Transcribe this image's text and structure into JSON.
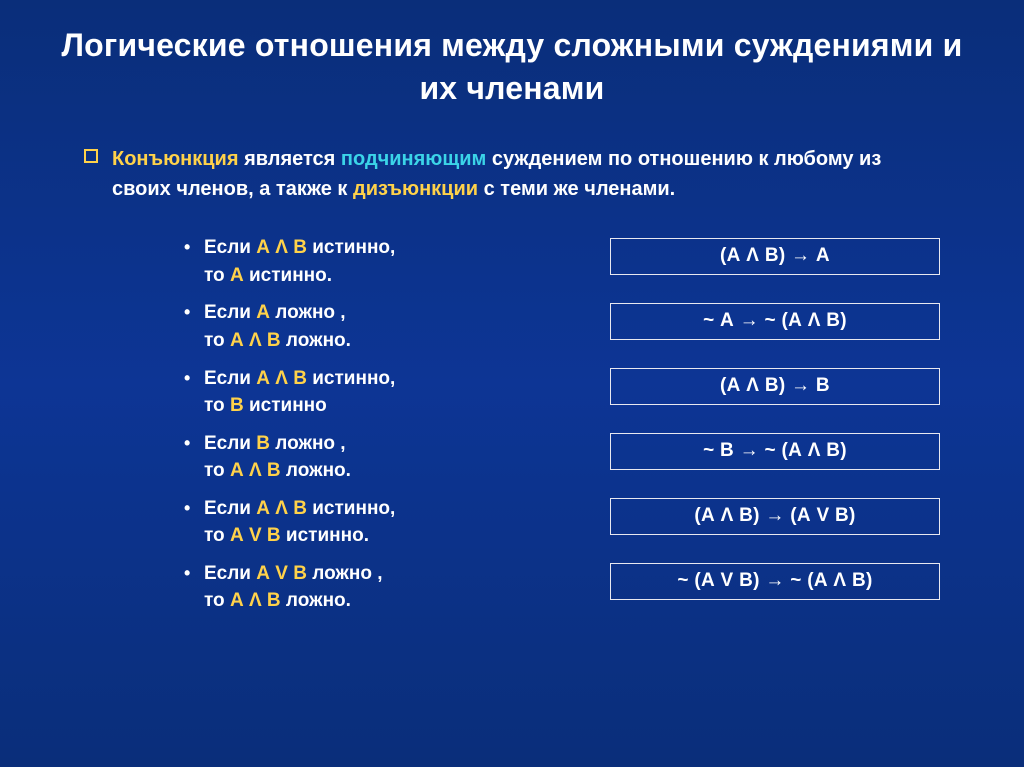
{
  "colors": {
    "background": "#0a2e7a",
    "text": "#ffffff",
    "yellow": "#ffd24a",
    "cyan": "#3bd4e8",
    "border": "#e8e8f0"
  },
  "typography": {
    "family": "Arial",
    "title_size": 32,
    "body_size": 20,
    "list_size": 19,
    "formula_size": 19,
    "weight": "bold"
  },
  "title": "Логические отношения между сложными суждениями и их членами",
  "intro": {
    "segments": [
      {
        "t": "Конъюнкция ",
        "c": "y"
      },
      {
        "t": "является ",
        "c": "w"
      },
      {
        "t": "подчиняющим ",
        "c": "c"
      },
      {
        "t": "суждением по отношению к любому из своих членов, а также к ",
        "c": "w"
      },
      {
        "t": "дизъюнкции ",
        "c": "y"
      },
      {
        "t": "с теми же членами.",
        "c": "w"
      }
    ]
  },
  "rules": [
    {
      "l1": [
        {
          "t": "Если ",
          "c": "w"
        },
        {
          "t": "А Λ В",
          "c": "y"
        },
        {
          "t": " истинно,",
          "c": "w"
        }
      ],
      "l2": [
        {
          "t": "то ",
          "c": "w"
        },
        {
          "t": "А",
          "c": "y"
        },
        {
          "t": " истинно.",
          "c": "w"
        }
      ]
    },
    {
      "l1": [
        {
          "t": "Если ",
          "c": "w"
        },
        {
          "t": "А",
          "c": "y"
        },
        {
          "t": " ложно ,",
          "c": "w"
        }
      ],
      "l2": [
        {
          "t": "то ",
          "c": "w"
        },
        {
          "t": "А Λ В",
          "c": "y"
        },
        {
          "t": " ложно.",
          "c": "w"
        }
      ]
    },
    {
      "l1": [
        {
          "t": "Если ",
          "c": "w"
        },
        {
          "t": "А Λ В",
          "c": "y"
        },
        {
          "t": " истинно,",
          "c": "w"
        }
      ],
      "l2": [
        {
          "t": "то ",
          "c": "w"
        },
        {
          "t": "В",
          "c": "y"
        },
        {
          "t": " истинно",
          "c": "w"
        }
      ]
    },
    {
      "l1": [
        {
          "t": "Если ",
          "c": "w"
        },
        {
          "t": "В",
          "c": "y"
        },
        {
          "t": " ложно ,",
          "c": "w"
        }
      ],
      "l2": [
        {
          "t": "то ",
          "c": "w"
        },
        {
          "t": "А Λ В",
          "c": "y"
        },
        {
          "t": " ложно.",
          "c": "w"
        }
      ]
    },
    {
      "l1": [
        {
          "t": "Если ",
          "c": "w"
        },
        {
          "t": "А Λ В",
          "c": "y"
        },
        {
          "t": " истинно,",
          "c": "w"
        }
      ],
      "l2": [
        {
          "t": "то ",
          "c": "w"
        },
        {
          "t": "А V В",
          "c": "y"
        },
        {
          "t": " истинно.",
          "c": "w"
        }
      ]
    },
    {
      "l1": [
        {
          "t": "Если ",
          "c": "w"
        },
        {
          "t": "А V В",
          "c": "y"
        },
        {
          "t": " ложно ,",
          "c": "w"
        }
      ],
      "l2": [
        {
          "t": "то ",
          "c": "w"
        },
        {
          "t": "А Λ В",
          "c": "y"
        },
        {
          "t": " ложно.",
          "c": "w"
        }
      ]
    }
  ],
  "formulas": [
    "(А Λ В) → А",
    "~ А → ~ (А Λ В)",
    "(А Λ В) → В",
    "~ В → ~ (А Λ В)",
    "(А Λ В) → (А V В)",
    "~ (А V В) → ~ (А Λ В)"
  ]
}
